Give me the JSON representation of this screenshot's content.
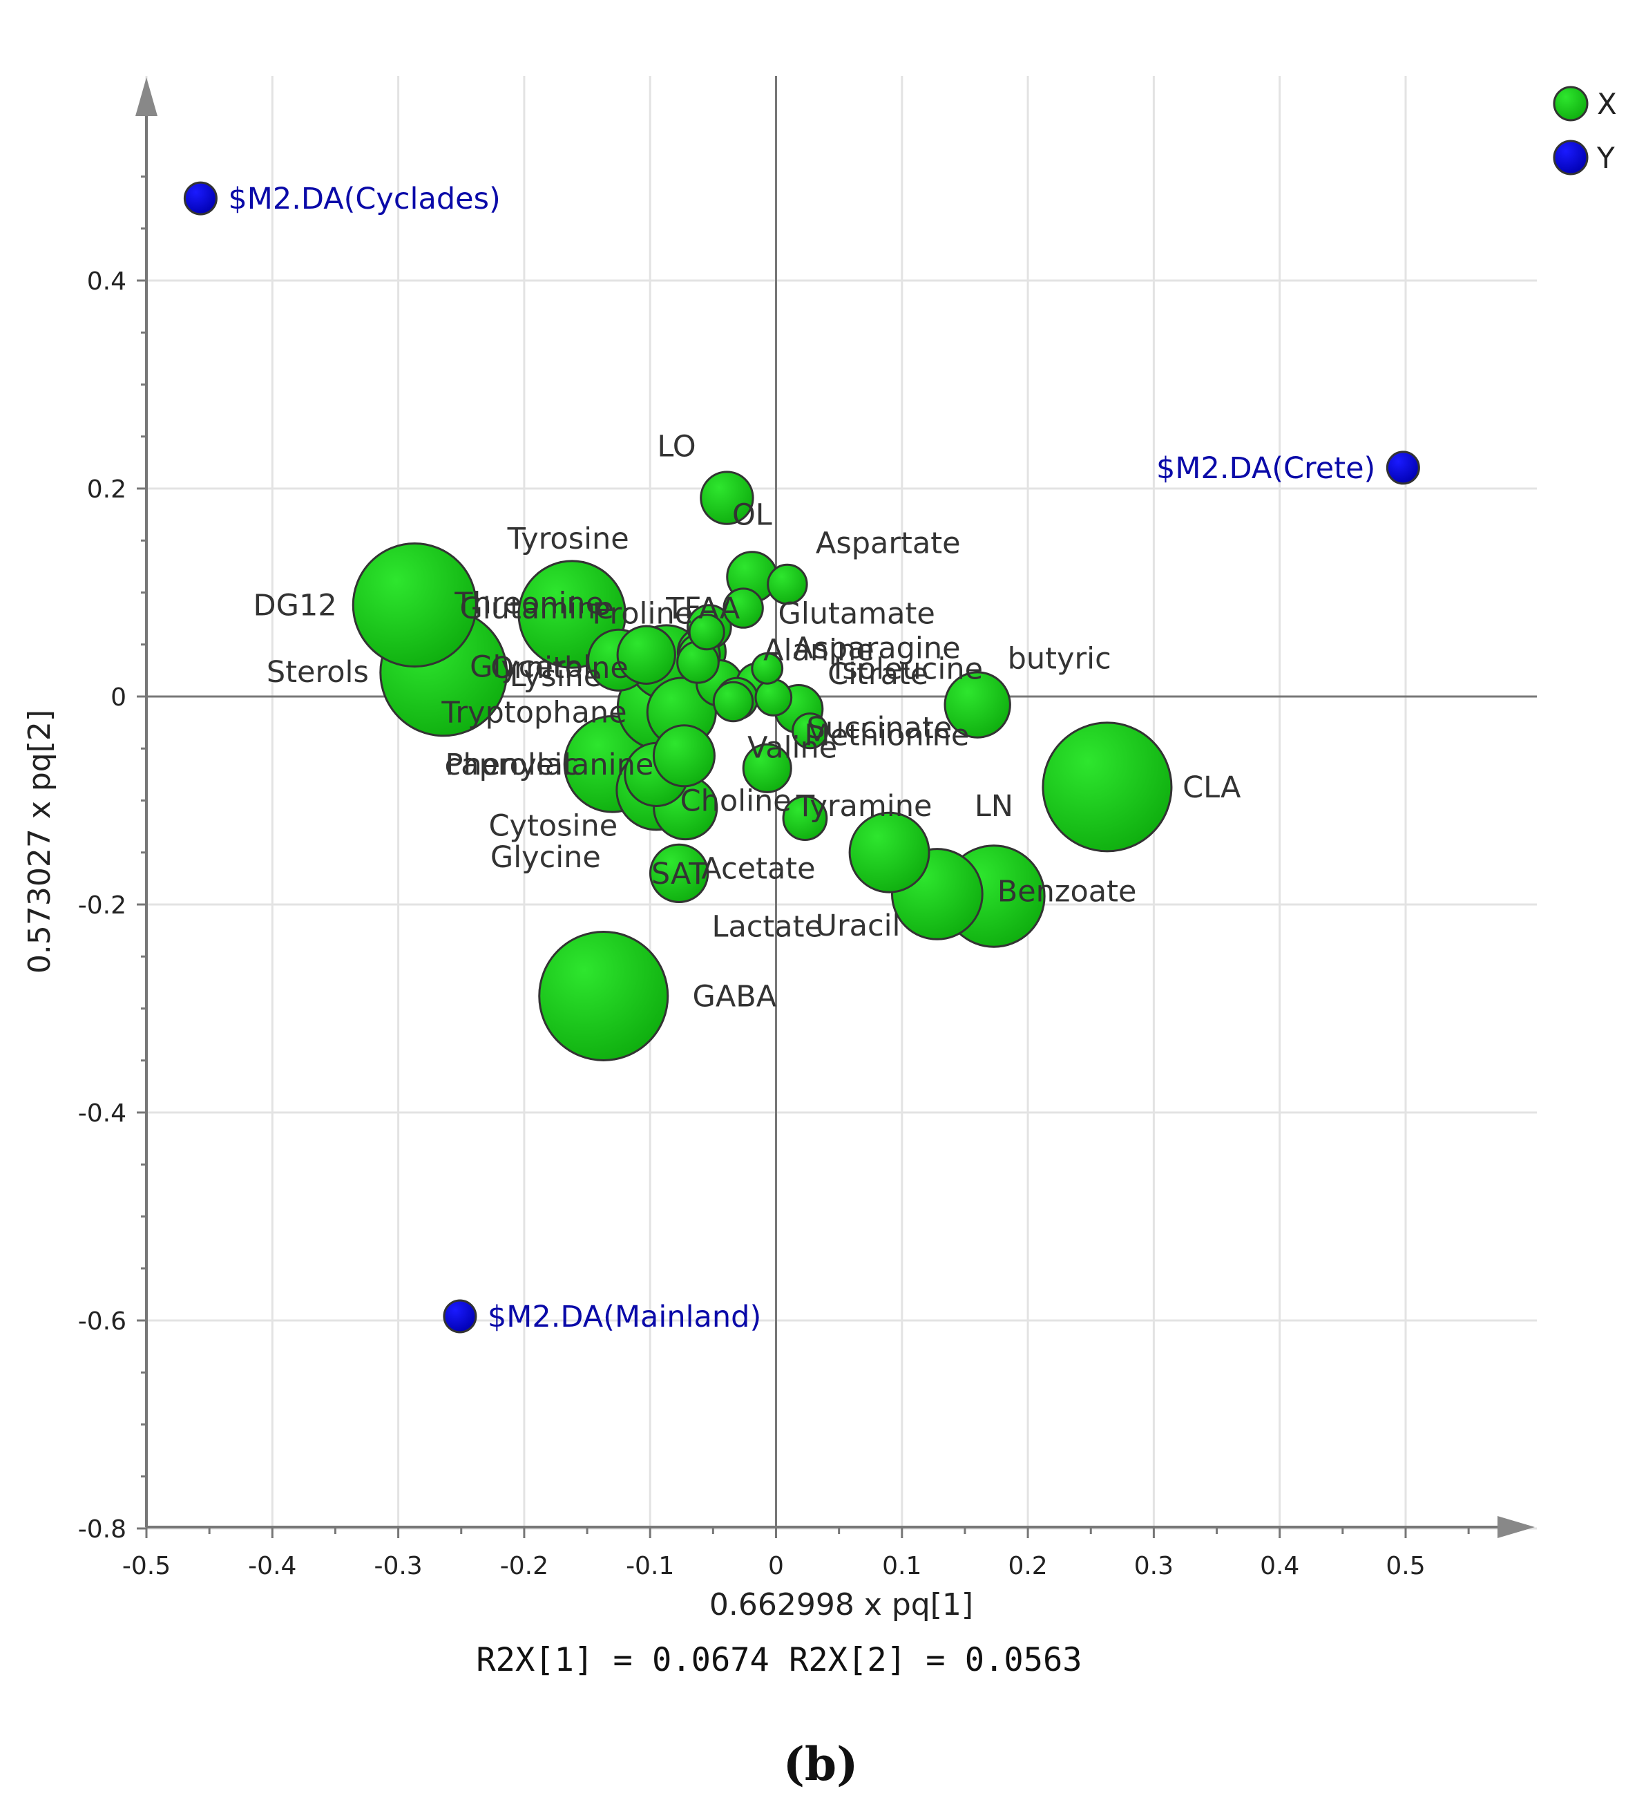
{
  "chart_data": {
    "type": "scatter",
    "subtype": "bubble-loadings",
    "xlabel": "0.662998 x pq[1]",
    "ylabel": "0.573027 x pq[2]",
    "footer": "R2X[1] = 0.0674 R2X[2] = 0.0563",
    "panel_label": "(b)",
    "xlim": [
      -0.5,
      0.55
    ],
    "ylim": [
      -0.8,
      0.55
    ],
    "x_ticks": [
      "-0.5",
      "-0.4",
      "-0.3",
      "-0.2",
      "-0.1",
      "0",
      "0.1",
      "0.2",
      "0.3",
      "0.4",
      "0.5"
    ],
    "x_tick_values": [
      -0.5,
      -0.4,
      -0.3,
      -0.2,
      -0.1,
      0,
      0.1,
      0.2,
      0.3,
      0.4,
      0.5
    ],
    "y_ticks": [
      "0.4",
      "0.2",
      "0",
      "-0.2",
      "-0.4",
      "-0.6",
      "-0.8"
    ],
    "y_tick_values": [
      0.4,
      0.2,
      0,
      -0.2,
      -0.4,
      -0.6,
      -0.8
    ],
    "legend": [
      {
        "name": "X",
        "color": "#22cc22"
      },
      {
        "name": "Y",
        "color": "#0a0ad0"
      }
    ],
    "series": [
      {
        "name": "X",
        "color": "#22cc22",
        "points": [
          {
            "label": "LO",
            "x": -0.039,
            "y": 0.191,
            "size": 0.3,
            "label_dx": -0.04,
            "label_dy": 0.05
          },
          {
            "label": "OL",
            "x": -0.019,
            "y": 0.115,
            "size": 0.28,
            "label_dx": 0.0,
            "label_dy": 0.06
          },
          {
            "label": "Aspartate",
            "x": 0.009,
            "y": 0.108,
            "size": 0.18,
            "label_dx": 0.08,
            "label_dy": 0.04
          },
          {
            "label": "Glutamate",
            "x": -0.026,
            "y": 0.085,
            "size": 0.18,
            "label_dx": 0.09,
            "label_dy": -0.005
          },
          {
            "label": "TFAA",
            "x": -0.053,
            "y": 0.067,
            "size": 0.22,
            "label_dx": -0.005,
            "label_dy": 0.018
          },
          {
            "label": "Asparagine",
            "x": -0.055,
            "y": 0.062,
            "size": 0.14,
            "label_dx": 0.135,
            "label_dy": -0.015
          },
          {
            "label": "Alanine",
            "x": -0.061,
            "y": 0.04,
            "size": 0.2,
            "label_dx": 0.095,
            "label_dy": 0.005
          },
          {
            "label": "Citrate",
            "x": -0.007,
            "y": 0.027,
            "size": 0.1,
            "label_dx": 0.088,
            "label_dy": -0.005
          },
          {
            "label": "Isoleucine",
            "x": -0.015,
            "y": 0.012,
            "size": 0.2,
            "label_dx": 0.12,
            "label_dy": 0.015
          },
          {
            "label": "butyric",
            "x": 0.16,
            "y": -0.008,
            "size": 0.42,
            "label_dx": 0.065,
            "label_dy": 0.045
          },
          {
            "label": "Succinate",
            "x": 0.027,
            "y": -0.033,
            "size": 0.14,
            "label_dx": 0.055,
            "label_dy": 0.003
          },
          {
            "label": "Methionine",
            "x": 0.018,
            "y": -0.012,
            "size": 0.26,
            "label_dx": 0.07,
            "label_dy": -0.025
          },
          {
            "label": "Valine",
            "x": -0.007,
            "y": -0.069,
            "size": 0.26,
            "label_dx": 0.02,
            "label_dy": 0.02
          },
          {
            "label": "CLA",
            "x": 0.263,
            "y": -0.087,
            "size": 1.0,
            "label_dx": 0.083,
            "label_dy": 0.0
          },
          {
            "label": "Choline",
            "x": 0.023,
            "y": -0.117,
            "size": 0.22,
            "label_dx": -0.055,
            "label_dy": 0.017
          },
          {
            "label": "Tyramine",
            "x": 0.09,
            "y": -0.15,
            "size": 0.55,
            "label_dx": -0.02,
            "label_dy": 0.045
          },
          {
            "label": "LN",
            "x": 0.128,
            "y": -0.19,
            "size": 0.65,
            "label_dx": 0.045,
            "label_dy": 0.085
          },
          {
            "label": "Benzoate",
            "x": 0.173,
            "y": -0.192,
            "size": 0.75,
            "label_dx": 0.058,
            "label_dy": 0.005
          },
          {
            "label": "Acetate",
            "x": -0.034,
            "y": -0.005,
            "size": 0.18,
            "label_dx": 0.02,
            "label_dy": -0.16
          },
          {
            "label": "Lactate",
            "x": -0.002,
            "y": -0.001,
            "size": 0.15,
            "label_dx": -0.005,
            "label_dy": -0.22
          },
          {
            "label": "Uracil",
            "x": 0.085,
            "y": -0.15,
            "size": 0.01,
            "label_dx": -0.02,
            "label_dy": -0.07
          },
          {
            "label": "DG12",
            "x": -0.287,
            "y": 0.088,
            "size": 0.95,
            "label_dx": -0.095,
            "label_dy": 0.0
          },
          {
            "label": "Sterols",
            "x": -0.264,
            "y": 0.023,
            "size": 0.98,
            "label_dx": -0.1,
            "label_dy": 0.001
          },
          {
            "label": "Tyrosine",
            "x": -0.162,
            "y": 0.079,
            "size": 0.8,
            "label_dx": -0.003,
            "label_dy": 0.073
          },
          {
            "label": "Threonine",
            "x": -0.163,
            "y": 0.08,
            "size": 0.01,
            "label_dx": -0.033,
            "label_dy": 0.01
          },
          {
            "label": "Proline",
            "x": -0.103,
            "y": 0.04,
            "size": 0.35,
            "label_dx": -0.003,
            "label_dy": 0.04
          },
          {
            "label": "Glutamine",
            "x": -0.125,
            "y": 0.035,
            "size": 0.38,
            "label_dx": -0.065,
            "label_dy": 0.05
          },
          {
            "label": "Glycerol",
            "x": -0.087,
            "y": 0.033,
            "size": 0.5,
            "label_dx": -0.108,
            "label_dy": -0.004
          },
          {
            "label": "Ornithine",
            "x": -0.062,
            "y": 0.033,
            "size": 0.2,
            "label_dx": -0.11,
            "label_dy": -0.005
          },
          {
            "label": "Lysine",
            "x": -0.045,
            "y": 0.013,
            "size": 0.24,
            "label_dx": -0.13,
            "label_dy": 0.007
          },
          {
            "label": "Tryptophane",
            "x": -0.092,
            "y": -0.01,
            "size": 0.6,
            "label_dx": -0.1,
            "label_dy": -0.005
          },
          {
            "label": "caproleic",
            "x": -0.075,
            "y": -0.015,
            "size": 0.45,
            "label_dx": -0.135,
            "label_dy": -0.05
          },
          {
            "label": "Phenylalanine",
            "x": -0.13,
            "y": -0.065,
            "size": 0.7,
            "label_dx": -0.05,
            "label_dy": 0.0
          },
          {
            "label": "Cytosine",
            "x": -0.095,
            "y": -0.09,
            "size": 0.55,
            "label_dx": -0.082,
            "label_dy": -0.034
          },
          {
            "label": "Glycine",
            "x": -0.073,
            "y": -0.057,
            "size": 0.38,
            "label_dx": -0.11,
            "label_dy": -0.097
          },
          {
            "label": "SAT",
            "x": -0.077,
            "y": -0.17,
            "size": 0.35,
            "label_dx": 0.0,
            "label_dy": 0.0
          },
          {
            "label": "GABA",
            "x": -0.137,
            "y": -0.288,
            "size": 1.0,
            "label_dx": 0.104,
            "label_dy": 0.0
          },
          {
            "label": "",
            "x": -0.072,
            "y": -0.107,
            "size": 0.4,
            "label_dx": 0,
            "label_dy": 0
          },
          {
            "label": "",
            "x": -0.095,
            "y": -0.075,
            "size": 0.4,
            "label_dx": 0,
            "label_dy": 0
          },
          {
            "label": "",
            "x": -0.031,
            "y": -0.002,
            "size": 0.2,
            "label_dx": 0,
            "label_dy": 0
          },
          {
            "label": "",
            "x": -0.059,
            "y": 0.043,
            "size": 0.26,
            "label_dx": 0,
            "label_dy": 0
          }
        ]
      },
      {
        "name": "Y",
        "color": "#0a0ad0",
        "points": [
          {
            "label": "$M2.DA(Cyclades)",
            "x": -0.457,
            "y": 0.479,
            "label_side": "right"
          },
          {
            "label": "$M2.DA(Crete)",
            "x": 0.498,
            "y": 0.22,
            "label_side": "left"
          },
          {
            "label": "$M2.DA(Mainland)",
            "x": -0.251,
            "y": -0.596,
            "label_side": "right"
          }
        ]
      }
    ]
  }
}
